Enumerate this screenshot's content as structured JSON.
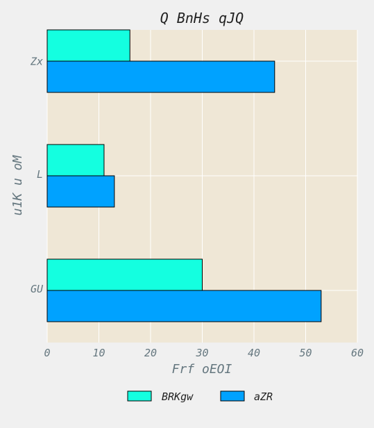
{
  "chart_data": {
    "type": "bar",
    "orientation": "horizontal",
    "title": "Q BnHs qJQ",
    "xlabel": "Frf oEOI",
    "ylabel": "u1K u oM",
    "categories": [
      "Zx",
      "L",
      "GU"
    ],
    "series": [
      {
        "name": "BRKgw",
        "values": [
          16,
          11,
          30
        ],
        "color": "#14ffe0"
      },
      {
        "name": "aZR",
        "values": [
          44,
          13,
          53
        ],
        "color": "#00a2ff"
      }
    ],
    "xlim": [
      0,
      60
    ],
    "xticks": [
      0,
      10,
      20,
      30,
      40,
      50,
      60
    ],
    "grid": true,
    "legend_position": "bottom-center",
    "plot_background": "#efe7d6",
    "page_background": "#f0f0f0"
  }
}
